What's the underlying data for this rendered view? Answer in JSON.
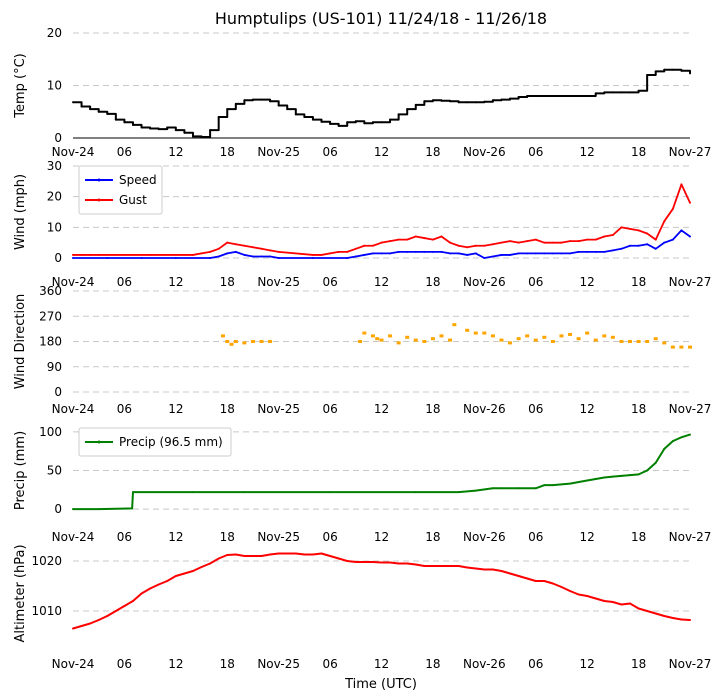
{
  "chart_data": [
    {
      "type": "line",
      "title": "Humptulips (US-101) 11/24/18 - 11/26/18",
      "ylabel": "Temp (°C)",
      "ylim": [
        0,
        20
      ],
      "yticks": [
        0,
        10,
        20
      ],
      "xlim": [
        0,
        72
      ],
      "xtick_labels": [
        "Nov-24",
        "06",
        "12",
        "18",
        "Nov-25",
        "06",
        "12",
        "18",
        "Nov-26",
        "06",
        "12",
        "18",
        "Nov-27"
      ],
      "series": [
        {
          "name": "Temp",
          "color": "#000000",
          "x": [
            0,
            1,
            2,
            3,
            4,
            5,
            6,
            7,
            8,
            9,
            10,
            11,
            12,
            13,
            14,
            15,
            16,
            17,
            18,
            19,
            20,
            21,
            22,
            23,
            24,
            25,
            26,
            27,
            28,
            29,
            30,
            31,
            32,
            33,
            34,
            35,
            36,
            37,
            38,
            39,
            40,
            41,
            42,
            43,
            44,
            45,
            46,
            47,
            48,
            49,
            50,
            51,
            52,
            53,
            54,
            55,
            56,
            57,
            58,
            59,
            60,
            61,
            62,
            63,
            64,
            65,
            66,
            67,
            68,
            69,
            70,
            71,
            72
          ],
          "values": [
            6.8,
            6.0,
            5.5,
            5.0,
            4.6,
            3.5,
            3.0,
            2.5,
            2.0,
            1.8,
            1.7,
            2.0,
            1.5,
            1.0,
            0.3,
            0.2,
            1.5,
            4.0,
            5.5,
            6.5,
            7.2,
            7.3,
            7.3,
            7.0,
            6.2,
            5.5,
            4.5,
            4.0,
            3.5,
            3.1,
            2.7,
            2.3,
            3.0,
            3.2,
            2.8,
            3.0,
            3.0,
            3.5,
            4.5,
            5.5,
            6.3,
            7.0,
            7.2,
            7.1,
            7.0,
            6.8,
            6.8,
            6.8,
            6.9,
            7.2,
            7.3,
            7.5,
            7.8,
            8.0,
            8.0,
            8.0,
            8.0,
            8.0,
            8.0,
            8.0,
            8.0,
            8.5,
            8.7,
            8.7,
            8.7,
            8.7,
            9.0,
            12.0,
            12.7,
            13.0,
            13.0,
            12.8,
            12.3
          ]
        }
      ]
    },
    {
      "type": "line",
      "ylabel": "Wind (mph)",
      "ylim": [
        0,
        30
      ],
      "yticks": [
        0,
        10,
        20,
        30
      ],
      "xlim": [
        0,
        72
      ],
      "xtick_labels": [
        "Nov-24",
        "06",
        "12",
        "18",
        "Nov-25",
        "06",
        "12",
        "18",
        "Nov-26",
        "06",
        "12",
        "18",
        "Nov-27"
      ],
      "legend": {
        "placement": "top-left"
      },
      "series": [
        {
          "name": "Speed",
          "color": "#0000ff",
          "x": [
            0,
            4,
            8,
            12,
            16,
            17,
            18,
            19,
            20,
            21,
            22,
            23,
            24,
            28,
            32,
            33,
            34,
            35,
            36,
            37,
            38,
            39,
            40,
            41,
            42,
            43,
            44,
            45,
            46,
            47,
            48,
            49,
            50,
            51,
            52,
            53,
            54,
            55,
            56,
            57,
            58,
            59,
            60,
            61,
            62,
            63,
            64,
            65,
            66,
            67,
            68,
            69,
            70,
            71,
            72
          ],
          "values": [
            0,
            0,
            0,
            0,
            0,
            0.5,
            1.5,
            2,
            1,
            0.5,
            0.5,
            0.5,
            0,
            0,
            0,
            0.5,
            1,
            1.5,
            1.5,
            1.5,
            2,
            2,
            2,
            2,
            2,
            2,
            1.5,
            1.5,
            1,
            1.5,
            0,
            0.5,
            1,
            1,
            1.5,
            1.5,
            1.5,
            1.5,
            1.5,
            1.5,
            1.5,
            2,
            2,
            2,
            2,
            2.5,
            3,
            4,
            4,
            4.5,
            3,
            5,
            6,
            9,
            7
          ]
        },
        {
          "name": "Gust",
          "color": "#ff0000",
          "x": [
            0,
            1,
            2,
            3,
            9,
            14,
            15,
            16,
            17,
            18,
            19,
            20,
            21,
            22,
            23,
            24,
            28,
            29,
            30,
            31,
            32,
            33,
            34,
            35,
            36,
            37,
            38,
            39,
            40,
            41,
            42,
            43,
            44,
            45,
            46,
            47,
            48,
            49,
            50,
            51,
            52,
            53,
            54,
            55,
            56,
            57,
            58,
            59,
            60,
            61,
            62,
            63,
            64,
            65,
            66,
            67,
            68,
            69,
            70,
            71,
            72
          ],
          "values": [
            1,
            1,
            1,
            1,
            1,
            1,
            1.5,
            2,
            3,
            5,
            4.5,
            4,
            3.5,
            3,
            2.5,
            2,
            1,
            1,
            1.5,
            2,
            2,
            3,
            4,
            4,
            5,
            5.5,
            6,
            6,
            7,
            6.5,
            6,
            7,
            5,
            4,
            3.5,
            4,
            4,
            4.5,
            5,
            5.5,
            5,
            5.5,
            6,
            5,
            5,
            5,
            5.5,
            5.5,
            6,
            6,
            7,
            7.5,
            10,
            9.5,
            9,
            8,
            6,
            12,
            16,
            24,
            18
          ]
        }
      ]
    },
    {
      "type": "scatter",
      "ylabel": "Wind Direction",
      "ylim": [
        0,
        360
      ],
      "yticks": [
        0,
        90,
        180,
        270,
        360
      ],
      "xlim": [
        0,
        72
      ],
      "xtick_labels": [
        "Nov-24",
        "06",
        "12",
        "18",
        "Nov-25",
        "06",
        "12",
        "18",
        "Nov-26",
        "06",
        "12",
        "18",
        "Nov-27"
      ],
      "series": [
        {
          "name": "Direction",
          "color": "#ffa500",
          "x": [
            17.5,
            18,
            18.5,
            19,
            20,
            21,
            22,
            23,
            33.5,
            34,
            35,
            35.5,
            36,
            37,
            38,
            39,
            40,
            41,
            42,
            43,
            44,
            44.5,
            46,
            47,
            48,
            49,
            50,
            51,
            52,
            53,
            54,
            55,
            56,
            57,
            58,
            59,
            60,
            61,
            62,
            63,
            64,
            65,
            66,
            67,
            68,
            69,
            70,
            71,
            72
          ],
          "values": [
            200,
            180,
            170,
            180,
            175,
            180,
            180,
            180,
            180,
            210,
            200,
            190,
            185,
            200,
            175,
            195,
            185,
            180,
            190,
            200,
            185,
            240,
            220,
            210,
            210,
            200,
            185,
            175,
            190,
            200,
            185,
            195,
            180,
            200,
            205,
            190,
            210,
            185,
            200,
            195,
            180,
            180,
            180,
            180,
            190,
            175,
            160,
            160,
            160
          ]
        }
      ]
    },
    {
      "type": "line",
      "ylabel": "Precip (mm)",
      "ylim": [
        -5,
        105
      ],
      "yticks": [
        0,
        50,
        100
      ],
      "xlim": [
        0,
        72
      ],
      "xtick_labels": [
        "Nov-24",
        "06",
        "12",
        "18",
        "Nov-25",
        "06",
        "12",
        "18",
        "Nov-26",
        "06",
        "12",
        "18",
        "Nov-27"
      ],
      "legend": {
        "placement": "top-left"
      },
      "series": [
        {
          "name": "Precip (96.5 mm)",
          "color": "#008000",
          "x": [
            0,
            3,
            6.9,
            7,
            14,
            20,
            30,
            40,
            45,
            47,
            49,
            50,
            52,
            54,
            55,
            56,
            58,
            60,
            61,
            62,
            63,
            64,
            65,
            66,
            67,
            68,
            69,
            70,
            71,
            72
          ],
          "values": [
            0,
            0,
            1,
            22,
            22,
            22,
            22,
            22,
            22,
            24,
            27,
            27,
            27,
            27,
            31,
            31,
            33,
            37,
            39,
            41,
            42,
            43,
            44,
            45,
            50,
            60,
            78,
            88,
            93,
            96.5
          ]
        }
      ]
    },
    {
      "type": "line",
      "ylabel": "Altimeter (hPa)",
      "xlabel": "Time (UTC)",
      "ylim": [
        1004,
        1023
      ],
      "yticks": [
        1010,
        1020
      ],
      "xlim": [
        0,
        72
      ],
      "xtick_labels": [
        "Nov-24",
        "06",
        "12",
        "18",
        "Nov-25",
        "06",
        "12",
        "18",
        "Nov-26",
        "06",
        "12",
        "18",
        "Nov-27"
      ],
      "series": [
        {
          "name": "Altimeter",
          "color": "#ff0000",
          "x": [
            0,
            1,
            2,
            3,
            4,
            5,
            6,
            7,
            8,
            9,
            10,
            11,
            12,
            13,
            14,
            15,
            16,
            17,
            18,
            19,
            20,
            21,
            22,
            23,
            24,
            25,
            26,
            27,
            28,
            29,
            30,
            31,
            32,
            33,
            34,
            35,
            36,
            37,
            38,
            39,
            40,
            41,
            42,
            43,
            44,
            45,
            46,
            47,
            48,
            49,
            50,
            51,
            52,
            53,
            54,
            55,
            56,
            57,
            58,
            59,
            60,
            61,
            62,
            63,
            64,
            65,
            66,
            67,
            68,
            69,
            70,
            71,
            72
          ],
          "values": [
            1006.5,
            1007,
            1007.5,
            1008.2,
            1009,
            1010,
            1011,
            1012,
            1013.5,
            1014.5,
            1015.3,
            1016,
            1017,
            1017.5,
            1018,
            1018.8,
            1019.5,
            1020.5,
            1021.2,
            1021.3,
            1021,
            1021,
            1021,
            1021.3,
            1021.5,
            1021.5,
            1021.5,
            1021.3,
            1021.3,
            1021.5,
            1021,
            1020.5,
            1020,
            1019.8,
            1019.8,
            1019.8,
            1019.7,
            1019.7,
            1019.5,
            1019.5,
            1019.3,
            1019,
            1019,
            1019,
            1019,
            1019,
            1018.7,
            1018.5,
            1018.3,
            1018.3,
            1018,
            1017.5,
            1017,
            1016.5,
            1016,
            1016,
            1015.5,
            1014.8,
            1014,
            1013.3,
            1013,
            1012.5,
            1012,
            1011.8,
            1011.3,
            1011.5,
            1010.5,
            1010,
            1009.5,
            1009,
            1008.6,
            1008.3,
            1008.2
          ]
        }
      ]
    }
  ]
}
